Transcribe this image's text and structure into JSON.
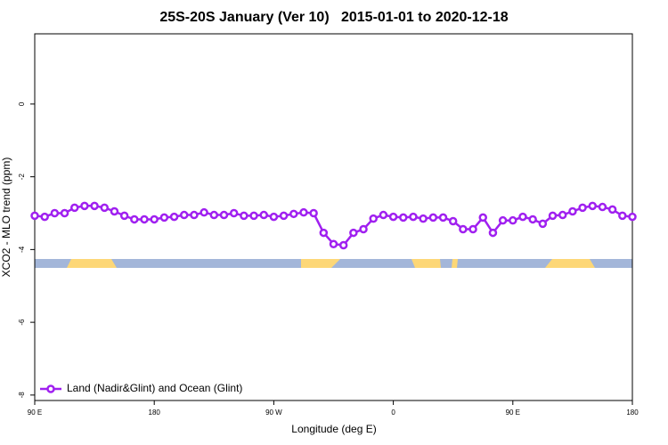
{
  "chart_data": {
    "type": "line",
    "title": "25S-20S January (Ver 10)   2015-01-01 to 2020-12-18",
    "x_label": "Longitude (deg E)",
    "y_label": "XCO2 - MLO trend (ppm)",
    "xlim": [
      90,
      540
    ],
    "xticks": [
      {
        "value": 90,
        "label": "90 E"
      },
      180,
      {
        "value": 270,
        "label": "90 W"
      },
      {
        "value": 360,
        "label": "0"
      },
      {
        "value": 450,
        "label": "90 E"
      },
      {
        "value": 540,
        "label": "180"
      }
    ],
    "ylim": [
      -8.15,
      1.93
    ],
    "yticks": [
      0,
      -2,
      -4,
      -6,
      -8
    ],
    "legend": "bottom-left",
    "x": [
      90,
      97.5,
      105,
      112.5,
      120,
      127.5,
      135,
      142.5,
      150,
      157.5,
      165,
      172.5,
      180,
      187.5,
      195,
      202.5,
      210,
      217.5,
      225,
      232.5,
      240,
      247.5,
      255,
      262.5,
      270,
      277.5,
      285,
      292.5,
      300,
      307.5,
      315,
      322.5,
      330,
      337.5,
      345,
      352.5,
      360,
      367.5,
      375,
      382.5,
      390,
      397.5,
      405,
      412.5,
      420,
      427.5,
      435,
      442.5,
      450,
      457.5,
      465,
      472.5,
      480,
      487.5,
      495,
      502.5,
      510,
      517.5,
      525,
      532.5,
      540
    ],
    "series": [
      {
        "name": "Land (Nadir&Glint) and Ocean (Glint)",
        "color": "#a020f0",
        "values": [
          -3.07,
          -3.1,
          -3.0,
          -3.0,
          -2.85,
          -2.8,
          -2.8,
          -2.85,
          -2.95,
          -3.07,
          -3.17,
          -3.17,
          -3.17,
          -3.12,
          -3.1,
          -3.05,
          -3.05,
          -2.98,
          -3.05,
          -3.05,
          -3.0,
          -3.07,
          -3.07,
          -3.05,
          -3.1,
          -3.07,
          -3.02,
          -2.98,
          -3.0,
          -3.54,
          -3.85,
          -3.88,
          -3.54,
          -3.44,
          -3.15,
          -3.05,
          -3.1,
          -3.12,
          -3.1,
          -3.15,
          -3.12,
          -3.12,
          -3.22,
          -3.44,
          -3.44,
          -3.12,
          -3.54,
          -3.2,
          -3.2,
          -3.1,
          -3.17,
          -3.29,
          -3.07,
          -3.05,
          -2.95,
          -2.85,
          -2.8,
          -2.83,
          -2.9,
          -3.07,
          -3.1
        ]
      }
    ]
  }
}
